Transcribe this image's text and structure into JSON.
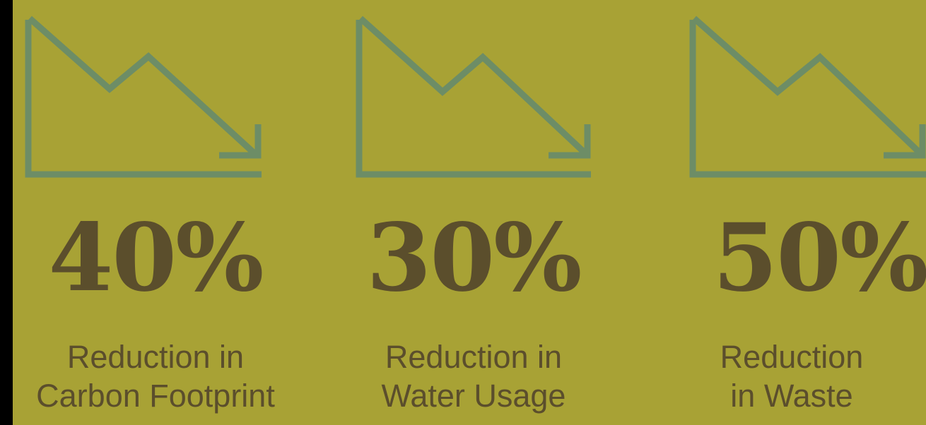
{
  "stats": [
    {
      "icon": "trend-down-icon",
      "value": "40%",
      "label_line1": "Reduction in",
      "label_line2": "Carbon Footprint"
    },
    {
      "icon": "trend-down-icon",
      "value": "30%",
      "label_line1": "Reduction in",
      "label_line2": "Water Usage"
    },
    {
      "icon": "trend-down-icon",
      "value": "50%",
      "label_line1": "Reduction",
      "label_line2": "in Waste"
    }
  ],
  "colors": {
    "background": "#a8a235",
    "icon_stroke": "#6d8d66",
    "text": "#5b4e2c"
  }
}
